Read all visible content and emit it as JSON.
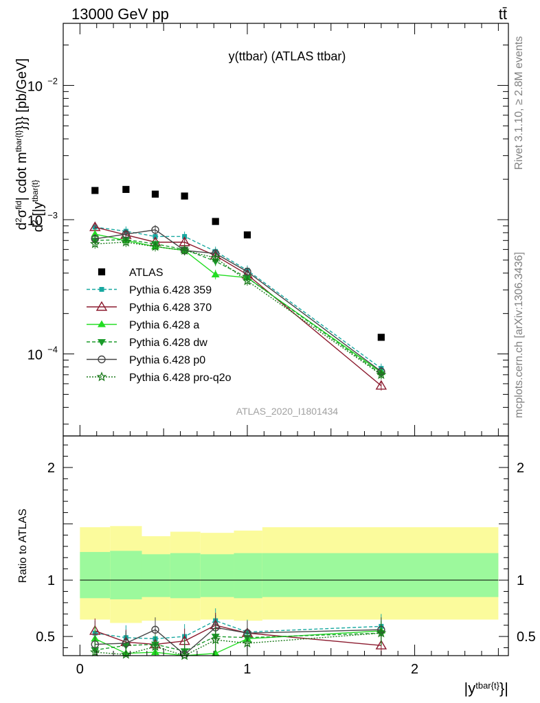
{
  "header": {
    "energy_label": "13000 GeV pp",
    "process_label": "tt̄"
  },
  "side_labels": {
    "rivet": "Rivet 3.1.10, ≥ 2.8M events",
    "mcplots": "mcplots.cern.ch [arXiv:1306.3436]"
  },
  "chart_data": [
    {
      "type": "scatter",
      "panel": "main",
      "title": "y(ttbar) (ATLAS ttbar)",
      "watermark": "ATLAS_2020_I1801434",
      "ylabel_parts": {
        "d1": "d",
        "sup2": "2",
        "sigma": "σ",
        "fid": "fid",
        "tbar_t": "tbar{t}",
        "d2": "d",
        "sup2b": "2",
        "paren": " [|y",
        "tbart": "tbar{t}",
        "cdot": "| cdot m",
        "sup3": "tbar{t}",
        "tail": "}}} [pb/GeV]"
      },
      "y_scale": "log",
      "ylim": [
        2.45e-05,
        0.029
      ],
      "xlim": [
        -0.1,
        2.56
      ],
      "y_tick_labels": [
        {
          "value": 0.01,
          "base": "10",
          "exp": "−2"
        },
        {
          "value": 0.001,
          "base": "10",
          "exp": "−3"
        },
        {
          "value": 0.0001,
          "base": "10",
          "exp": "−4"
        }
      ],
      "x": [
        0.09,
        0.275,
        0.45,
        0.625,
        0.81,
        1.0,
        1.8
      ],
      "series": [
        {
          "name": "ATLAS",
          "color": "#000000",
          "marker": "square",
          "line": "none",
          "values": [
            0.00165,
            0.00168,
            0.00155,
            0.0015,
            0.00097,
            0.00077,
            0.000133
          ]
        },
        {
          "name": "Pythia 6.428 359",
          "color": "#17a8a0",
          "marker": "square-small",
          "line": "dashed",
          "values": [
            0.00088,
            0.00082,
            0.00075,
            0.00075,
            0.00058,
            0.00042,
            7.8e-05
          ]
        },
        {
          "name": "Pythia 6.428 370",
          "color": "#8b1a2e",
          "marker": "triangle-open",
          "line": "solid",
          "values": [
            0.00088,
            0.00077,
            0.00068,
            0.00068,
            0.00054,
            0.00039,
            5.8e-05
          ]
        },
        {
          "name": "Pythia 6.428 a",
          "color": "#22dd22",
          "marker": "triangle",
          "line": "solid",
          "values": [
            0.00078,
            0.0007,
            0.00063,
            0.00059,
            0.00039,
            0.00037,
            7.3e-05
          ]
        },
        {
          "name": "Pythia 6.428 dw",
          "color": "#1a9a2a",
          "marker": "triangle-down",
          "line": "dashed",
          "values": [
            0.0007,
            0.00071,
            0.00066,
            0.0006,
            0.00049,
            0.00037,
            7.1e-05
          ]
        },
        {
          "name": "Pythia 6.428 p0",
          "color": "#444444",
          "marker": "circle-open",
          "line": "solid",
          "values": [
            0.00072,
            0.00078,
            0.00084,
            0.00059,
            0.00056,
            0.00041,
            7.4e-05
          ]
        },
        {
          "name": "Pythia 6.428 pro-q2o",
          "color": "#1a7a1a",
          "marker": "star",
          "line": "dotted",
          "values": [
            0.00066,
            0.00068,
            0.00063,
            0.00059,
            0.00052,
            0.00035,
            7e-05
          ]
        }
      ]
    },
    {
      "type": "scatter",
      "panel": "ratio",
      "ylabel": "Ratio to ATLAS",
      "xlabel_parts": {
        "base": "|y",
        "sup": "tbar{t}",
        "tail": "}|"
      },
      "ylim": [
        0.33,
        2.28
      ],
      "xlim": [
        -0.1,
        2.56
      ],
      "y_tick_labels": [
        "0.5",
        "1",
        "2"
      ],
      "y_tick_values": [
        0.5,
        1,
        2
      ],
      "x_tick_labels": [
        "0",
        "1",
        "2"
      ],
      "x_tick_values": [
        0,
        1,
        2
      ],
      "bands": {
        "edges": [
          0.0,
          0.18,
          0.37,
          0.54,
          0.72,
          0.92,
          1.09,
          2.5
        ],
        "inner_color": "#9cf99c",
        "outer_color": "#fbfb9c",
        "inner": [
          [
            0.84,
            1.25
          ],
          [
            0.83,
            1.26
          ],
          [
            0.85,
            1.23
          ],
          [
            0.84,
            1.24
          ],
          [
            0.85,
            1.23
          ],
          [
            0.84,
            1.24
          ],
          [
            0.85,
            1.24
          ]
        ],
        "outer": [
          [
            0.65,
            1.47
          ],
          [
            0.62,
            1.48
          ],
          [
            0.64,
            1.39
          ],
          [
            0.64,
            1.43
          ],
          [
            0.65,
            1.42
          ],
          [
            0.64,
            1.44
          ],
          [
            0.65,
            1.47
          ]
        ]
      },
      "series": [
        {
          "name": "Pythia 6.428 359",
          "values": [
            0.53,
            0.49,
            0.48,
            0.5,
            0.64,
            0.54,
            0.59
          ]
        },
        {
          "name": "Pythia 6.428 370",
          "values": [
            0.55,
            0.45,
            0.43,
            0.46,
            0.6,
            0.53,
            0.42
          ]
        },
        {
          "name": "Pythia 6.428 a",
          "values": [
            0.48,
            0.35,
            0.36,
            0.3,
            0.35,
            0.48,
            0.55
          ]
        },
        {
          "name": "Pythia 6.428 dw",
          "values": [
            0.38,
            0.42,
            0.43,
            0.37,
            0.5,
            0.49,
            0.53
          ]
        },
        {
          "name": "Pythia 6.428 p0",
          "values": [
            0.43,
            0.44,
            0.56,
            0.34,
            0.58,
            0.53,
            0.56
          ]
        },
        {
          "name": "Pythia 6.428 pro-q2o",
          "values": [
            0.36,
            0.34,
            0.41,
            0.33,
            0.47,
            0.44,
            0.53
          ]
        }
      ]
    }
  ]
}
